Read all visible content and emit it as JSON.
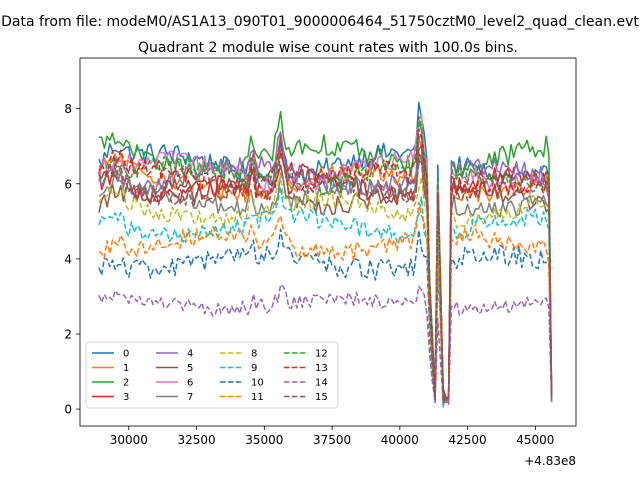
{
  "figure": {
    "suptitle": "Data from file: modeM0/AS1A13_090T01_9000006464_51750cztM0_level2_quad_clean.evt"
  },
  "chart_data": {
    "type": "line",
    "title": "Quadrant 2 module wise count rates with 100.0s bins.",
    "xlabel": "",
    "ylabel": "",
    "x_offset_label": "+4.83e8",
    "x_offset": 483000000,
    "xlim": [
      28200,
      46500
    ],
    "ylim": [
      -0.45,
      9.35
    ],
    "x_ticks": [
      30000,
      32500,
      35000,
      37500,
      40000,
      42500,
      45000
    ],
    "x_tick_labels": [
      "30000",
      "32500",
      "35000",
      "37500",
      "40000",
      "42500",
      "45000"
    ],
    "y_ticks": [
      0,
      2,
      4,
      6,
      8
    ],
    "y_tick_labels": [
      "0",
      "2",
      "4",
      "6",
      "8"
    ],
    "grid": false,
    "legend_placement": "lower-left",
    "legend_columns": 4,
    "x_start": 28900,
    "x_end": 45600,
    "x_step": 100,
    "gaps": [
      [
        41250,
        41350
      ],
      [
        41700,
        41800
      ],
      [
        45550,
        45600
      ]
    ],
    "series": [
      {
        "name": "0",
        "color": "#1f77b4",
        "dash": "solid",
        "level": 6.5,
        "noise": 0.28
      },
      {
        "name": "1",
        "color": "#ff7f0e",
        "dash": "solid",
        "level": 6.05,
        "noise": 0.25
      },
      {
        "name": "2",
        "color": "#2ca02c",
        "dash": "solid",
        "level": 6.7,
        "noise": 0.28
      },
      {
        "name": "3",
        "color": "#d62728",
        "dash": "solid",
        "level": 6.0,
        "noise": 0.28
      },
      {
        "name": "4",
        "color": "#9467bd",
        "dash": "solid",
        "level": 6.2,
        "noise": 0.26
      },
      {
        "name": "5",
        "color": "#8c564b",
        "dash": "solid",
        "level": 5.7,
        "noise": 0.26
      },
      {
        "name": "6",
        "color": "#e377c2",
        "dash": "solid",
        "level": 6.3,
        "noise": 0.26
      },
      {
        "name": "7",
        "color": "#7f7f7f",
        "dash": "solid",
        "level": 5.6,
        "noise": 0.25
      },
      {
        "name": "8",
        "color": "#bcbd22",
        "dash": "dashed",
        "level": 5.3,
        "noise": 0.24
      },
      {
        "name": "9",
        "color": "#17becf",
        "dash": "dashed",
        "level": 4.85,
        "noise": 0.24
      },
      {
        "name": "10",
        "color": "#1f77b4",
        "dash": "dashed",
        "level": 3.9,
        "noise": 0.28
      },
      {
        "name": "11",
        "color": "#ff7f0e",
        "dash": "dashed",
        "level": 4.4,
        "noise": 0.25
      },
      {
        "name": "12",
        "color": "#2ca02c",
        "dash": "dashed",
        "level": 6.2,
        "noise": 0.26
      },
      {
        "name": "13",
        "color": "#d62728",
        "dash": "dashed",
        "level": 6.1,
        "noise": 0.26
      },
      {
        "name": "14",
        "color": "#9467bd",
        "dash": "dashed",
        "level": 2.8,
        "noise": 0.2
      },
      {
        "name": "15",
        "color": "#8c564b",
        "dash": "dashed",
        "level": 5.9,
        "noise": 0.26
      }
    ]
  }
}
